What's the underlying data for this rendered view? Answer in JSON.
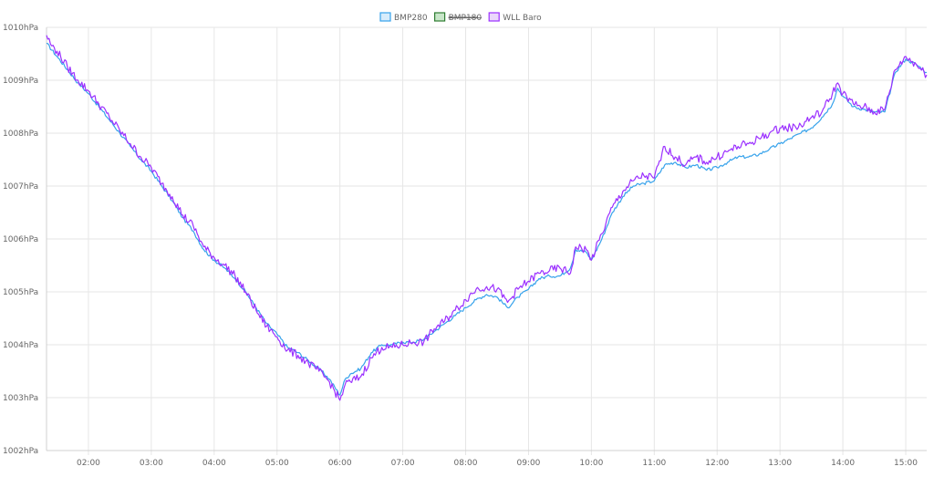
{
  "chart_data": {
    "type": "line",
    "x_unit": "time",
    "x_range": [
      "01:20",
      "15:20"
    ],
    "y_unit": "hPa",
    "ylim": [
      1002,
      1010
    ],
    "y_ticks": [
      {
        "value": 1010,
        "label": "1010hPa"
      },
      {
        "value": 1009,
        "label": "1009hPa"
      },
      {
        "value": 1008,
        "label": "1008hPa"
      },
      {
        "value": 1007,
        "label": "1007hPa"
      },
      {
        "value": 1006,
        "label": "1006hPa"
      },
      {
        "value": 1005,
        "label": "1005hPa"
      },
      {
        "value": 1004,
        "label": "1004hPa"
      },
      {
        "value": 1003,
        "label": "1003hPa"
      },
      {
        "value": 1002,
        "label": "1002hPa"
      }
    ],
    "x_ticks": [
      {
        "value": "02:00",
        "label": "02:00"
      },
      {
        "value": "03:00",
        "label": "03:00"
      },
      {
        "value": "04:00",
        "label": "04:00"
      },
      {
        "value": "05:00",
        "label": "05:00"
      },
      {
        "value": "06:00",
        "label": "06:00"
      },
      {
        "value": "07:00",
        "label": "07:00"
      },
      {
        "value": "08:00",
        "label": "08:00"
      },
      {
        "value": "09:00",
        "label": "09:00"
      },
      {
        "value": "10:00",
        "label": "10:00"
      },
      {
        "value": "11:00",
        "label": "11:00"
      },
      {
        "value": "12:00",
        "label": "12:00"
      },
      {
        "value": "13:00",
        "label": "13:00"
      },
      {
        "value": "14:00",
        "label": "14:00"
      },
      {
        "value": "15:00",
        "label": "15:00"
      }
    ],
    "grid": true,
    "legend_position": "top-center",
    "series": [
      {
        "name": "BMP280",
        "color": "#36a2eb",
        "fill": "#d7ecfb",
        "hidden": false,
        "points": [
          [
            "01:20",
            1009.7
          ],
          [
            "01:30",
            1009.45
          ],
          [
            "01:40",
            1009.2
          ],
          [
            "01:50",
            1008.95
          ],
          [
            "02:00",
            1008.75
          ],
          [
            "02:10",
            1008.5
          ],
          [
            "02:20",
            1008.25
          ],
          [
            "02:30",
            1008.0
          ],
          [
            "02:40",
            1007.75
          ],
          [
            "02:50",
            1007.5
          ],
          [
            "03:00",
            1007.28
          ],
          [
            "03:10",
            1007.0
          ],
          [
            "03:20",
            1006.72
          ],
          [
            "03:30",
            1006.4
          ],
          [
            "03:40",
            1006.15
          ],
          [
            "03:50",
            1005.8
          ],
          [
            "04:00",
            1005.6
          ],
          [
            "04:10",
            1005.45
          ],
          [
            "04:20",
            1005.25
          ],
          [
            "04:30",
            1005.0
          ],
          [
            "04:40",
            1004.7
          ],
          [
            "04:50",
            1004.4
          ],
          [
            "05:00",
            1004.2
          ],
          [
            "05:10",
            1003.95
          ],
          [
            "05:20",
            1003.85
          ],
          [
            "05:30",
            1003.7
          ],
          [
            "05:40",
            1003.55
          ],
          [
            "05:50",
            1003.35
          ],
          [
            "06:00",
            1003.05
          ],
          [
            "06:05",
            1003.35
          ],
          [
            "06:10",
            1003.45
          ],
          [
            "06:20",
            1003.55
          ],
          [
            "06:30",
            1003.85
          ],
          [
            "06:40",
            1004.0
          ],
          [
            "06:50",
            1004.0
          ],
          [
            "07:00",
            1004.05
          ],
          [
            "07:10",
            1004.05
          ],
          [
            "07:20",
            1004.1
          ],
          [
            "07:30",
            1004.25
          ],
          [
            "07:40",
            1004.4
          ],
          [
            "07:50",
            1004.55
          ],
          [
            "08:00",
            1004.7
          ],
          [
            "08:10",
            1004.85
          ],
          [
            "08:20",
            1004.95
          ],
          [
            "08:30",
            1004.9
          ],
          [
            "08:40",
            1004.7
          ],
          [
            "08:50",
            1004.9
          ],
          [
            "09:00",
            1005.05
          ],
          [
            "09:10",
            1005.25
          ],
          [
            "09:20",
            1005.3
          ],
          [
            "09:30",
            1005.3
          ],
          [
            "09:40",
            1005.45
          ],
          [
            "09:45",
            1005.8
          ],
          [
            "09:55",
            1005.75
          ],
          [
            "10:00",
            1005.6
          ],
          [
            "10:10",
            1006.0
          ],
          [
            "10:20",
            1006.5
          ],
          [
            "10:30",
            1006.8
          ],
          [
            "10:40",
            1007.0
          ],
          [
            "10:50",
            1007.05
          ],
          [
            "11:00",
            1007.1
          ],
          [
            "11:10",
            1007.4
          ],
          [
            "11:20",
            1007.45
          ],
          [
            "11:30",
            1007.35
          ],
          [
            "11:40",
            1007.4
          ],
          [
            "11:50",
            1007.3
          ],
          [
            "12:00",
            1007.35
          ],
          [
            "12:10",
            1007.45
          ],
          [
            "12:20",
            1007.55
          ],
          [
            "12:30",
            1007.55
          ],
          [
            "12:40",
            1007.6
          ],
          [
            "12:50",
            1007.7
          ],
          [
            "13:00",
            1007.8
          ],
          [
            "13:10",
            1007.9
          ],
          [
            "13:20",
            1008.0
          ],
          [
            "13:30",
            1008.1
          ],
          [
            "13:40",
            1008.3
          ],
          [
            "13:50",
            1008.55
          ],
          [
            "13:55",
            1008.85
          ],
          [
            "14:00",
            1008.7
          ],
          [
            "14:10",
            1008.5
          ],
          [
            "14:20",
            1008.45
          ],
          [
            "14:30",
            1008.4
          ],
          [
            "14:40",
            1008.4
          ],
          [
            "14:50",
            1009.15
          ],
          [
            "15:00",
            1009.4
          ],
          [
            "15:10",
            1009.3
          ],
          [
            "15:20",
            1009.15
          ]
        ]
      },
      {
        "name": "BMP180",
        "color": "#2e7d32",
        "fill": "#c8e6c9",
        "hidden": true,
        "points": []
      },
      {
        "name": "WLL Baro",
        "color": "#9b30ff",
        "fill": "#ead7fb",
        "hidden": false,
        "points": [
          [
            "01:20",
            1009.85
          ],
          [
            "01:25",
            1009.65
          ],
          [
            "01:30",
            1009.55
          ],
          [
            "01:40",
            1009.25
          ],
          [
            "01:50",
            1009.0
          ],
          [
            "02:00",
            1008.8
          ],
          [
            "02:10",
            1008.55
          ],
          [
            "02:20",
            1008.3
          ],
          [
            "02:30",
            1008.05
          ],
          [
            "02:40",
            1007.8
          ],
          [
            "02:50",
            1007.55
          ],
          [
            "03:00",
            1007.35
          ],
          [
            "03:10",
            1007.05
          ],
          [
            "03:20",
            1006.8
          ],
          [
            "03:30",
            1006.45
          ],
          [
            "03:40",
            1006.25
          ],
          [
            "03:50",
            1005.85
          ],
          [
            "04:00",
            1005.65
          ],
          [
            "04:10",
            1005.5
          ],
          [
            "04:20",
            1005.3
          ],
          [
            "04:30",
            1005.0
          ],
          [
            "04:40",
            1004.65
          ],
          [
            "04:50",
            1004.35
          ],
          [
            "05:00",
            1004.15
          ],
          [
            "05:10",
            1003.9
          ],
          [
            "05:20",
            1003.8
          ],
          [
            "05:30",
            1003.65
          ],
          [
            "05:40",
            1003.5
          ],
          [
            "05:50",
            1003.3
          ],
          [
            "06:00",
            1002.95
          ],
          [
            "06:05",
            1003.25
          ],
          [
            "06:10",
            1003.3
          ],
          [
            "06:20",
            1003.4
          ],
          [
            "06:30",
            1003.75
          ],
          [
            "06:40",
            1003.95
          ],
          [
            "06:50",
            1003.95
          ],
          [
            "07:00",
            1004.0
          ],
          [
            "07:10",
            1004.05
          ],
          [
            "07:20",
            1004.05
          ],
          [
            "07:30",
            1004.3
          ],
          [
            "07:40",
            1004.45
          ],
          [
            "07:50",
            1004.65
          ],
          [
            "08:00",
            1004.85
          ],
          [
            "08:10",
            1005.05
          ],
          [
            "08:20",
            1005.1
          ],
          [
            "08:30",
            1005.05
          ],
          [
            "08:40",
            1004.8
          ],
          [
            "08:50",
            1005.05
          ],
          [
            "09:00",
            1005.2
          ],
          [
            "09:10",
            1005.35
          ],
          [
            "09:20",
            1005.4
          ],
          [
            "09:30",
            1005.45
          ],
          [
            "09:40",
            1005.35
          ],
          [
            "09:45",
            1005.85
          ],
          [
            "09:55",
            1005.8
          ],
          [
            "10:00",
            1005.6
          ],
          [
            "10:10",
            1006.1
          ],
          [
            "10:20",
            1006.6
          ],
          [
            "10:30",
            1006.9
          ],
          [
            "10:40",
            1007.1
          ],
          [
            "10:50",
            1007.2
          ],
          [
            "11:00",
            1007.15
          ],
          [
            "11:10",
            1007.75
          ],
          [
            "11:20",
            1007.55
          ],
          [
            "11:30",
            1007.4
          ],
          [
            "11:40",
            1007.55
          ],
          [
            "11:50",
            1007.45
          ],
          [
            "12:00",
            1007.55
          ],
          [
            "12:10",
            1007.65
          ],
          [
            "12:20",
            1007.75
          ],
          [
            "12:30",
            1007.8
          ],
          [
            "12:40",
            1007.9
          ],
          [
            "12:50",
            1008.0
          ],
          [
            "13:00",
            1008.1
          ],
          [
            "13:10",
            1008.1
          ],
          [
            "13:20",
            1008.15
          ],
          [
            "13:30",
            1008.3
          ],
          [
            "13:40",
            1008.4
          ],
          [
            "13:50",
            1008.75
          ],
          [
            "13:55",
            1008.95
          ],
          [
            "14:00",
            1008.75
          ],
          [
            "14:10",
            1008.55
          ],
          [
            "14:20",
            1008.5
          ],
          [
            "14:30",
            1008.4
          ],
          [
            "14:40",
            1008.45
          ],
          [
            "14:50",
            1009.2
          ],
          [
            "15:00",
            1009.45
          ],
          [
            "15:10",
            1009.3
          ],
          [
            "15:20",
            1009.1
          ]
        ]
      }
    ]
  }
}
